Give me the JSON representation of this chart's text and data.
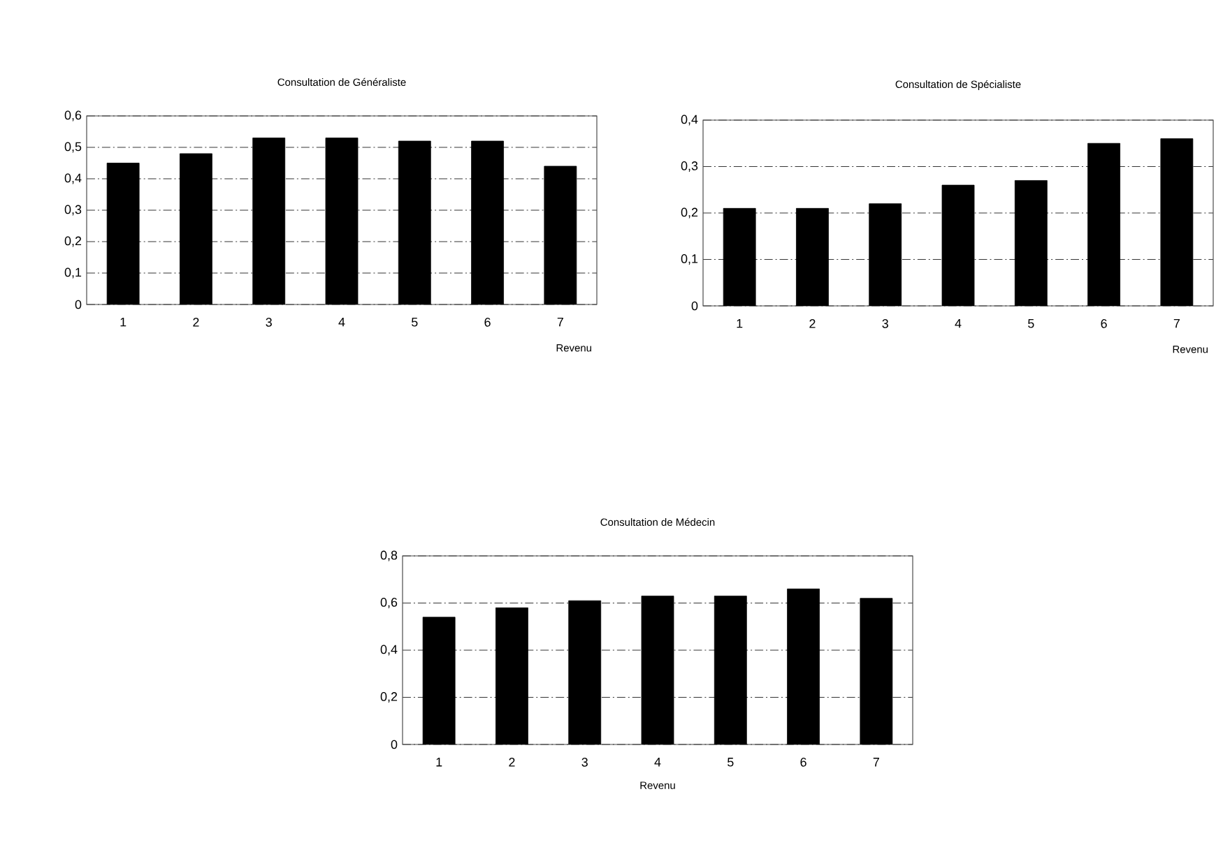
{
  "chart_data": [
    {
      "type": "bar",
      "title": "Consultation de Généraliste",
      "xlabel": "Revenu",
      "categories": [
        "1",
        "2",
        "3",
        "4",
        "5",
        "6",
        "7"
      ],
      "values": [
        0.45,
        0.48,
        0.53,
        0.53,
        0.52,
        0.52,
        0.44
      ],
      "color": "#000000",
      "ylim": [
        0,
        0.6
      ],
      "yticks": [
        0,
        {
          "value": 0.1,
          "label": "0,1"
        },
        {
          "value": 0.2,
          "label": "0,2"
        },
        {
          "value": 0.3,
          "label": "0,3"
        },
        {
          "value": 0.4,
          "label": "0,4"
        },
        {
          "value": 0.5,
          "label": "0,5"
        },
        {
          "value": 0.6,
          "label": "0,6"
        }
      ],
      "grid": "y"
    },
    {
      "type": "bar",
      "title": "Consultation de Spécialiste",
      "xlabel": "Revenu",
      "categories": [
        "1",
        "2",
        "3",
        "4",
        "5",
        "6",
        "7"
      ],
      "values": [
        0.21,
        0.21,
        0.22,
        0.26,
        0.27,
        0.35,
        0.36
      ],
      "color": "#000000",
      "ylim": [
        0,
        0.4
      ],
      "yticks": [
        0,
        {
          "value": 0.1,
          "label": "0,1"
        },
        {
          "value": 0.2,
          "label": "0,2"
        },
        {
          "value": 0.3,
          "label": "0,3"
        },
        {
          "value": 0.4,
          "label": "0,4"
        }
      ],
      "grid": "y"
    },
    {
      "type": "bar",
      "title": "Consultation de Médecin",
      "xlabel": "Revenu",
      "categories": [
        "1",
        "2",
        "3",
        "4",
        "5",
        "6",
        "7"
      ],
      "values": [
        0.54,
        0.58,
        0.61,
        0.63,
        0.63,
        0.66,
        0.62
      ],
      "color": "#000000",
      "ylim": [
        0,
        0.8
      ],
      "yticks": [
        0,
        {
          "value": 0.2,
          "label": "0,2"
        },
        {
          "value": 0.4,
          "label": "0,4"
        },
        {
          "value": 0.6,
          "label": "0,6"
        },
        {
          "value": 0.8,
          "label": "0,8"
        }
      ],
      "grid": "y"
    }
  ]
}
